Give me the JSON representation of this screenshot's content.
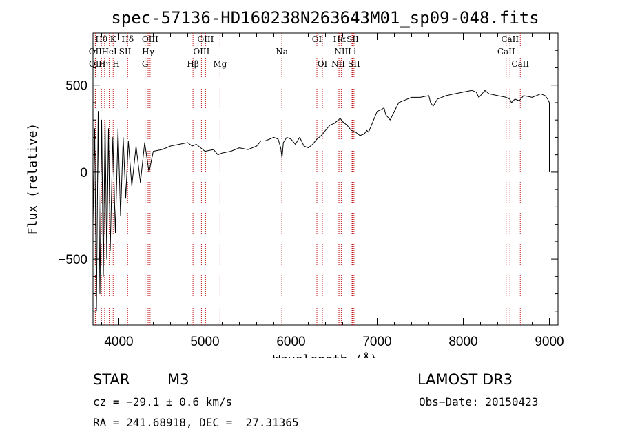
{
  "chart_data": {
    "type": "line",
    "title": "spec-57136-HD160238N263643M01_sp09-048.fits",
    "xlabel": "Wavelength (Å)",
    "ylabel": "Flux (relative)",
    "xlim": [
      3700,
      9100
    ],
    "ylim": [
      -880,
      800
    ],
    "xticks": [
      4000,
      5000,
      6000,
      7000,
      8000,
      9000
    ],
    "yticks": [
      -500,
      0,
      500
    ],
    "series": [
      {
        "name": "flux",
        "x": [
          3700,
          3720,
          3740,
          3760,
          3780,
          3800,
          3820,
          3840,
          3860,
          3880,
          3900,
          3930,
          3960,
          3990,
          4020,
          4050,
          4080,
          4110,
          4150,
          4200,
          4250,
          4300,
          4350,
          4400,
          4500,
          4600,
          4700,
          4800,
          4850,
          4900,
          5000,
          5100,
          5150,
          5200,
          5300,
          5400,
          5500,
          5600,
          5650,
          5700,
          5800,
          5850,
          5880,
          5895,
          5910,
          5950,
          6000,
          6050,
          6100,
          6150,
          6200,
          6250,
          6300,
          6350,
          6400,
          6450,
          6500,
          6550,
          6570,
          6600,
          6650,
          6700,
          6750,
          6800,
          6850,
          6880,
          6900,
          6950,
          7000,
          7050,
          7080,
          7100,
          7150,
          7200,
          7250,
          7300,
          7400,
          7500,
          7600,
          7620,
          7650,
          7700,
          7800,
          7900,
          8000,
          8100,
          8150,
          8180,
          8200,
          8250,
          8300,
          8400,
          8500,
          8540,
          8560,
          8600,
          8650,
          8700,
          8800,
          8900,
          8950,
          8980,
          9000,
          9000
        ],
        "y": [
          -300,
          250,
          -800,
          350,
          -700,
          300,
          -600,
          300,
          -500,
          250,
          -450,
          200,
          -350,
          250,
          -250,
          200,
          -150,
          180,
          -80,
          150,
          -60,
          170,
          0,
          120,
          130,
          150,
          160,
          170,
          150,
          160,
          120,
          130,
          100,
          110,
          120,
          140,
          130,
          150,
          180,
          180,
          200,
          190,
          140,
          80,
          170,
          200,
          190,
          160,
          200,
          150,
          140,
          160,
          190,
          210,
          240,
          270,
          280,
          300,
          310,
          290,
          270,
          240,
          230,
          210,
          220,
          240,
          230,
          290,
          350,
          360,
          370,
          330,
          300,
          350,
          400,
          410,
          430,
          430,
          440,
          400,
          380,
          420,
          440,
          450,
          460,
          470,
          460,
          430,
          440,
          470,
          450,
          440,
          430,
          420,
          400,
          420,
          410,
          440,
          430,
          450,
          440,
          420,
          400,
          0
        ]
      }
    ],
    "spectral_lines": [
      {
        "label": "Hθ",
        "wavelength": 3798,
        "row": 0
      },
      {
        "label": "K",
        "wavelength": 3934,
        "row": 0
      },
      {
        "label": "Hδ",
        "wavelength": 4102,
        "row": 0
      },
      {
        "label": "OIII",
        "wavelength": 4363,
        "row": 0
      },
      {
        "label": "OIII",
        "wavelength": 5007,
        "row": 0
      },
      {
        "label": "OI",
        "wavelength": 6300,
        "row": 0
      },
      {
        "label": "Hα",
        "wavelength": 6563,
        "row": 0
      },
      {
        "label": "SII",
        "wavelength": 6716,
        "row": 0
      },
      {
        "label": "CaII",
        "wavelength": 8542,
        "row": 0
      },
      {
        "label": "OII",
        "wavelength": 3727,
        "row": 1
      },
      {
        "label": "HeI",
        "wavelength": 3889,
        "row": 1
      },
      {
        "label": "SII",
        "wavelength": 4072,
        "row": 1
      },
      {
        "label": "Hγ",
        "wavelength": 4340,
        "row": 1
      },
      {
        "label": "OIII",
        "wavelength": 4959,
        "row": 1
      },
      {
        "label": "Na",
        "wavelength": 5893,
        "row": 1
      },
      {
        "label": "NII",
        "wavelength": 6583,
        "row": 1
      },
      {
        "label": "Li",
        "wavelength": 6708,
        "row": 1
      },
      {
        "label": "CaII",
        "wavelength": 8498,
        "row": 1
      },
      {
        "label": "OII",
        "wavelength": 3729,
        "row": 2
      },
      {
        "label": "Hη",
        "wavelength": 3835,
        "row": 2
      },
      {
        "label": "H",
        "wavelength": 3968,
        "row": 2
      },
      {
        "label": "G",
        "wavelength": 4305,
        "row": 2
      },
      {
        "label": "Hβ",
        "wavelength": 4861,
        "row": 2
      },
      {
        "label": "Mg",
        "wavelength": 5175,
        "row": 2
      },
      {
        "label": "OI",
        "wavelength": 6364,
        "row": 2
      },
      {
        "label": "NII",
        "wavelength": 6548,
        "row": 2
      },
      {
        "label": "SII",
        "wavelength": 6731,
        "row": 2
      },
      {
        "label": "CaII",
        "wavelength": 8662,
        "row": 2
      }
    ]
  },
  "info": {
    "object_class": "STAR",
    "subclass": "M3",
    "survey": "LAMOST DR3",
    "cz": "cz = −29.1 ± 0.6 km/s",
    "obs_date": "Obs−Date: 20150423",
    "coords": "RA = 241.68918, DEC =  27.31365"
  }
}
